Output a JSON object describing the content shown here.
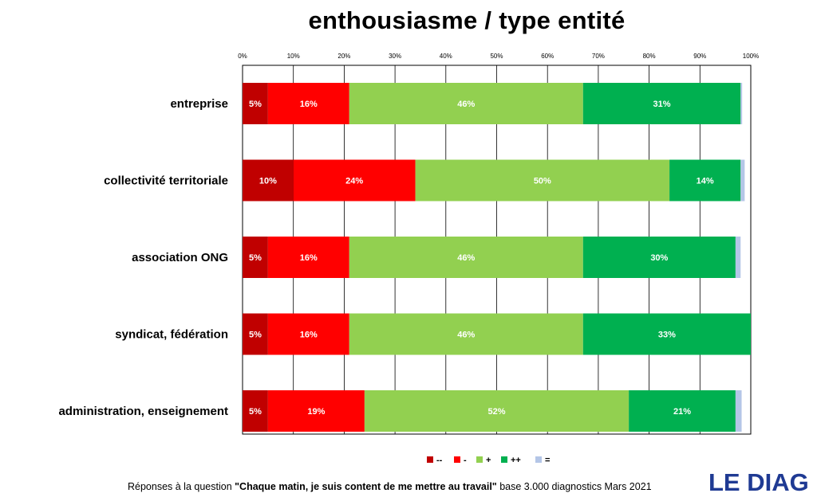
{
  "chart_data": {
    "type": "bar",
    "orientation": "horizontal",
    "stacked": true,
    "title": "enthousiasme / type entité",
    "categories": [
      "entreprise",
      "collectivité territoriale",
      "association ONG",
      "syndicat, fédération",
      "administration, enseignement"
    ],
    "series": [
      {
        "name": "--",
        "color": "#c00000",
        "values": [
          5,
          10,
          5,
          5,
          5
        ],
        "labels": [
          "5%",
          "10%",
          "5%",
          "5%",
          "5%"
        ]
      },
      {
        "name": "-",
        "color": "#ff0000",
        "values": [
          16,
          24,
          16,
          16,
          19
        ],
        "labels": [
          "16%",
          "24%",
          "16%",
          "16%",
          "19%"
        ]
      },
      {
        "name": "+",
        "color": "#92d050",
        "values": [
          46,
          50,
          46,
          46,
          52
        ],
        "labels": [
          "46%",
          "50%",
          "46%",
          "46%",
          "52%"
        ]
      },
      {
        "name": "++",
        "color": "#00b050",
        "values": [
          31,
          14,
          30,
          33,
          21
        ],
        "labels": [
          "31%",
          "14%",
          "30%",
          "33%",
          "21%"
        ]
      },
      {
        "name": "=",
        "color": "#b4c6e7",
        "values": [
          0.3,
          0.8,
          1,
          0,
          1.2
        ],
        "labels": [
          "",
          "",
          "",
          "",
          ""
        ]
      }
    ],
    "xlim": [
      0,
      100
    ],
    "xticks": [
      "0%",
      "10%",
      "20%",
      "30%",
      "40%",
      "50%",
      "60%",
      "70%",
      "80%",
      "90%",
      "100%"
    ],
    "grid": true,
    "legend": "bottom"
  },
  "footer": {
    "prefix": "Réponses à la question ",
    "question": "\"Chaque matin, je suis content de me mettre au travail\"",
    "suffix": "  base 3.000 diagnostics Mars 2021"
  },
  "logo": {
    "text": "LE DIAG",
    "color": "#1f3a93"
  }
}
